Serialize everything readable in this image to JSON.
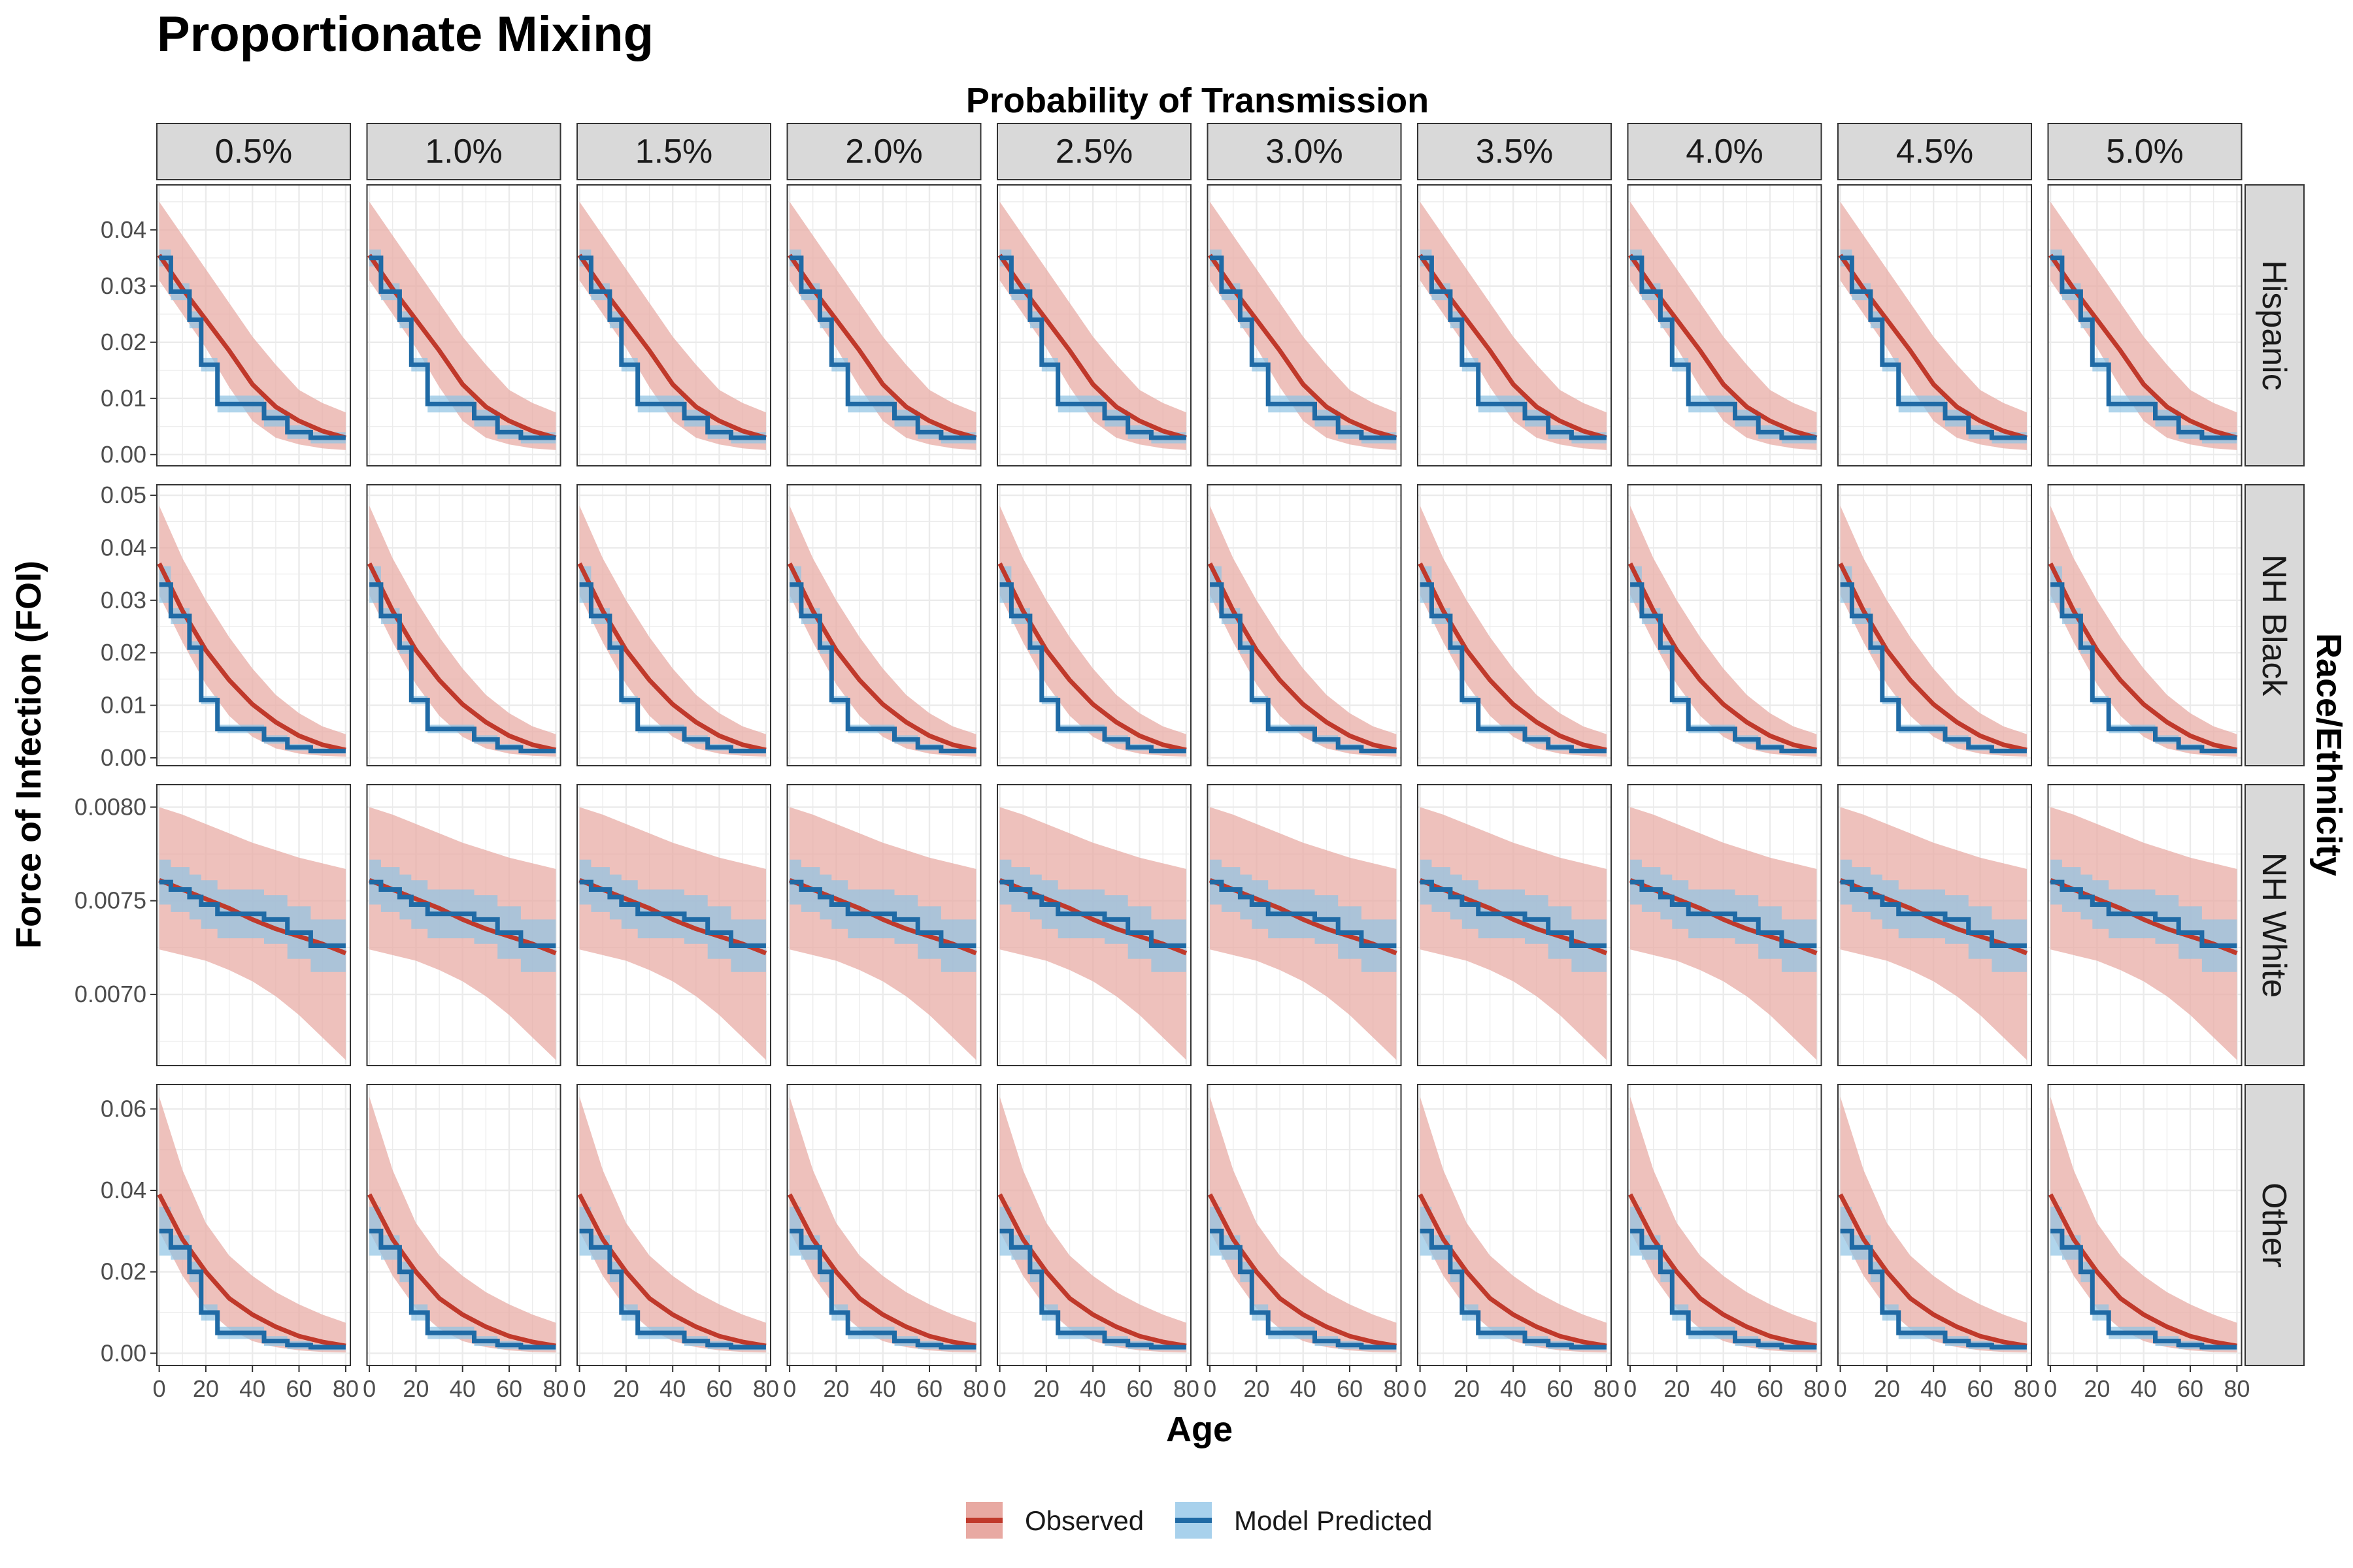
{
  "chart_data": {
    "type": "line",
    "title": "Proportionate Mixing",
    "column_facet_title": "Probability of Transmission",
    "row_facet_title": "Race/Ethnicity",
    "xlabel": "Age",
    "ylabel": "Force of Infection (FOI)",
    "columns": [
      "0.5%",
      "1.0%",
      "1.5%",
      "2.0%",
      "2.5%",
      "3.0%",
      "3.5%",
      "4.0%",
      "4.5%",
      "5.0%"
    ],
    "x_ticks": [
      0,
      20,
      40,
      60,
      80
    ],
    "x_tick_labels": [
      "0",
      "20",
      "40",
      "60",
      "80"
    ],
    "xlim": [
      -1,
      82
    ],
    "age_bin_edges": [
      0,
      5,
      13,
      18,
      25,
      45,
      55,
      65,
      80
    ],
    "legend": {
      "position": "bottom",
      "entries": [
        {
          "label": "Observed",
          "color": "#c0392b",
          "fill": "#e8a9a2"
        },
        {
          "label": "Model Predicted",
          "color": "#1f6aa5",
          "fill": "#9ecae6"
        }
      ]
    },
    "colors": {
      "observed_line": "#c0392b",
      "observed_band": "#e8a9a2",
      "predicted_line": "#1f6aa5",
      "predicted_band": "#8fc3e4",
      "strip_bg": "#d9d9d9",
      "grid": "#ebebeb"
    },
    "rows": [
      {
        "label": "Hispanic",
        "ylim": [
          -0.002,
          0.048
        ],
        "y_ticks": [
          0,
          0.01,
          0.02,
          0.03,
          0.04
        ],
        "y_tick_labels": [
          "0.00",
          "0.01",
          "0.02",
          "0.03",
          "0.04"
        ],
        "observed": {
          "x": [
            0,
            10,
            20,
            30,
            40,
            50,
            60,
            70,
            80
          ],
          "y": [
            0.0355,
            0.0295,
            0.024,
            0.0185,
            0.0125,
            0.0085,
            0.006,
            0.0042,
            0.003
          ],
          "lower": [
            0.031,
            0.025,
            0.019,
            0.012,
            0.006,
            0.003,
            0.0018,
            0.0011,
            0.0008
          ],
          "upper": [
            0.045,
            0.039,
            0.033,
            0.027,
            0.021,
            0.016,
            0.0115,
            0.0092,
            0.0075
          ]
        },
        "predicted_steps": [
          0.035,
          0.029,
          0.024,
          0.016,
          0.009,
          0.0065,
          0.004,
          0.003
        ],
        "predicted_band_halfwidth": [
          0.0015,
          0.0015,
          0.0015,
          0.0012,
          0.0015,
          0.0015,
          0.0012,
          0.001
        ]
      },
      {
        "label": "NH Black",
        "ylim": [
          -0.0015,
          0.052
        ],
        "y_ticks": [
          0,
          0.01,
          0.02,
          0.03,
          0.04,
          0.05
        ],
        "y_tick_labels": [
          "0.00",
          "0.01",
          "0.02",
          "0.03",
          "0.04",
          "0.05"
        ],
        "observed": {
          "x": [
            0,
            10,
            20,
            30,
            40,
            50,
            60,
            70,
            80
          ],
          "y": [
            0.037,
            0.028,
            0.0205,
            0.0148,
            0.0102,
            0.0068,
            0.0042,
            0.0025,
            0.0015
          ],
          "lower": [
            0.031,
            0.022,
            0.014,
            0.008,
            0.004,
            0.0018,
            0.0008,
            0.0004,
            0.0002
          ],
          "upper": [
            0.048,
            0.038,
            0.03,
            0.023,
            0.017,
            0.012,
            0.0085,
            0.006,
            0.0045
          ]
        },
        "predicted_steps": [
          0.033,
          0.027,
          0.021,
          0.011,
          0.0055,
          0.0035,
          0.002,
          0.0013
        ],
        "predicted_band_halfwidth": [
          0.0035,
          0.0015,
          0.0012,
          0.0008,
          0.0008,
          0.0008,
          0.0006,
          0.0005
        ]
      },
      {
        "label": "NH White",
        "ylim": [
          0.00662,
          0.00812
        ],
        "y_ticks": [
          0.007,
          0.0075,
          0.008
        ],
        "y_tick_labels": [
          "0.0070",
          "0.0075",
          "0.0080"
        ],
        "observed": {
          "x": [
            0,
            10,
            20,
            30,
            40,
            50,
            60,
            70,
            80
          ],
          "y": [
            0.00761,
            0.00756,
            0.00751,
            0.00746,
            0.0074,
            0.00735,
            0.00731,
            0.00727,
            0.00722
          ],
          "lower": [
            0.00724,
            0.00721,
            0.00718,
            0.00713,
            0.00707,
            0.00699,
            0.00689,
            0.00677,
            0.00665
          ],
          "upper": [
            0.008,
            0.00796,
            0.00791,
            0.00786,
            0.00781,
            0.00777,
            0.00773,
            0.0077,
            0.00767
          ]
        },
        "predicted_steps": [
          0.0076,
          0.00756,
          0.00752,
          0.00748,
          0.00743,
          0.0074,
          0.00733,
          0.00726
        ],
        "predicted_band_halfwidth": [
          0.00012,
          0.00012,
          0.00012,
          0.00013,
          0.00013,
          0.00013,
          0.00014,
          0.00014
        ]
      },
      {
        "label": "Other",
        "ylim": [
          -0.003,
          0.066
        ],
        "y_ticks": [
          0,
          0.02,
          0.04,
          0.06
        ],
        "y_tick_labels": [
          "0.00",
          "0.02",
          "0.04",
          "0.06"
        ],
        "observed": {
          "x": [
            0,
            10,
            20,
            30,
            40,
            50,
            60,
            70,
            80
          ],
          "y": [
            0.039,
            0.028,
            0.02,
            0.0135,
            0.0095,
            0.0065,
            0.0042,
            0.0028,
            0.0018
          ],
          "lower": [
            0.03,
            0.019,
            0.011,
            0.006,
            0.003,
            0.0015,
            0.0007,
            0.0003,
            0.0002
          ],
          "upper": [
            0.063,
            0.045,
            0.032,
            0.024,
            0.019,
            0.015,
            0.012,
            0.0095,
            0.0075
          ]
        },
        "predicted_steps": [
          0.03,
          0.026,
          0.02,
          0.01,
          0.005,
          0.003,
          0.002,
          0.0015
        ],
        "predicted_band_halfwidth": [
          0.006,
          0.003,
          0.0025,
          0.002,
          0.0015,
          0.0012,
          0.001,
          0.0008
        ]
      }
    ]
  }
}
